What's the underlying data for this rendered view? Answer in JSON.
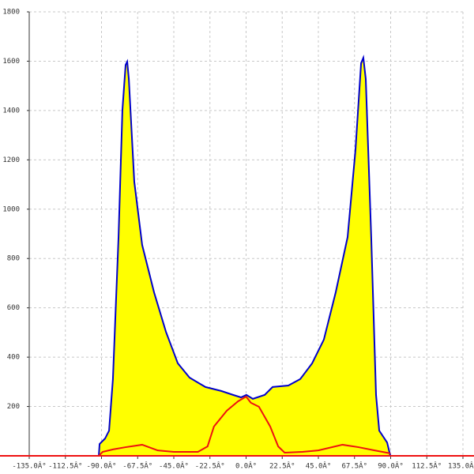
{
  "chart_data": {
    "type": "area",
    "xlim": [
      -135,
      135
    ],
    "ylim": [
      0,
      1800
    ],
    "xticks": [
      {
        "value": -135,
        "label": "-135.0Â°"
      },
      {
        "value": -112.5,
        "label": "-112.5Â°"
      },
      {
        "value": -90,
        "label": "-90.0Â°"
      },
      {
        "value": -67.5,
        "label": "-67.5Â°"
      },
      {
        "value": -45,
        "label": "-45.0Â°"
      },
      {
        "value": -22.5,
        "label": "-22.5Â°"
      },
      {
        "value": 0,
        "label": "0.0Â°"
      },
      {
        "value": 22.5,
        "label": "22.5Â°"
      },
      {
        "value": 45,
        "label": "45.0Â°"
      },
      {
        "value": 67.5,
        "label": "67.5Â°"
      },
      {
        "value": 90,
        "label": "90.0Â°"
      },
      {
        "value": 112.5,
        "label": "112.5Â°"
      },
      {
        "value": 135,
        "label": "135.0Â°"
      }
    ],
    "yticks": [
      200,
      400,
      600,
      800,
      1000,
      1200,
      1400,
      1600,
      1800
    ],
    "grid": true,
    "axis_color": "#ee1111",
    "series": [
      {
        "color": "#0000cc",
        "fill": "#ffff00",
        "x": [
          -91.7,
          -91.2,
          -87.8,
          -85.3,
          -82.9,
          -79.4,
          -77.0,
          -75.0,
          -74.0,
          -73.0,
          -69.6,
          -64.7,
          -57.3,
          -49.9,
          -42.5,
          -35.2,
          -25.3,
          -15.5,
          -8.1,
          -3.2,
          0.2,
          4.2,
          11.6,
          16.5,
          26.3,
          33.7,
          41.1,
          48.4,
          55.8,
          63.2,
          68.1,
          71.6,
          73.0,
          74.5,
          77.9,
          80.9,
          82.9,
          87.8,
          89.8
        ],
        "values": [
          0,
          48,
          70,
          102,
          311,
          887,
          1400,
          1585,
          1598,
          1528,
          1111,
          855,
          663,
          503,
          375,
          317,
          279,
          263,
          247,
          237,
          247,
          231,
          247,
          279,
          285,
          311,
          375,
          471,
          663,
          887,
          1240,
          1592,
          1614,
          1528,
          887,
          247,
          102,
          54,
          0
        ]
      },
      {
        "color": "#ee1111",
        "x": [
          -91.7,
          -89.3,
          -82.9,
          -75.0,
          -64.7,
          -55.0,
          -45.0,
          -30.0,
          -24.0,
          -20.0,
          -12.0,
          -5.0,
          0.0,
          3.0,
          8.0,
          15.0,
          20.0,
          24.0,
          35.0,
          45.0,
          60.0,
          70.0,
          80.0,
          89.8
        ],
        "values": [
          0,
          16,
          26,
          35,
          45,
          22,
          16,
          16,
          38,
          119,
          183,
          221,
          240,
          215,
          199,
          119,
          38,
          13,
          16,
          22,
          45,
          35,
          22,
          10
        ]
      }
    ]
  }
}
